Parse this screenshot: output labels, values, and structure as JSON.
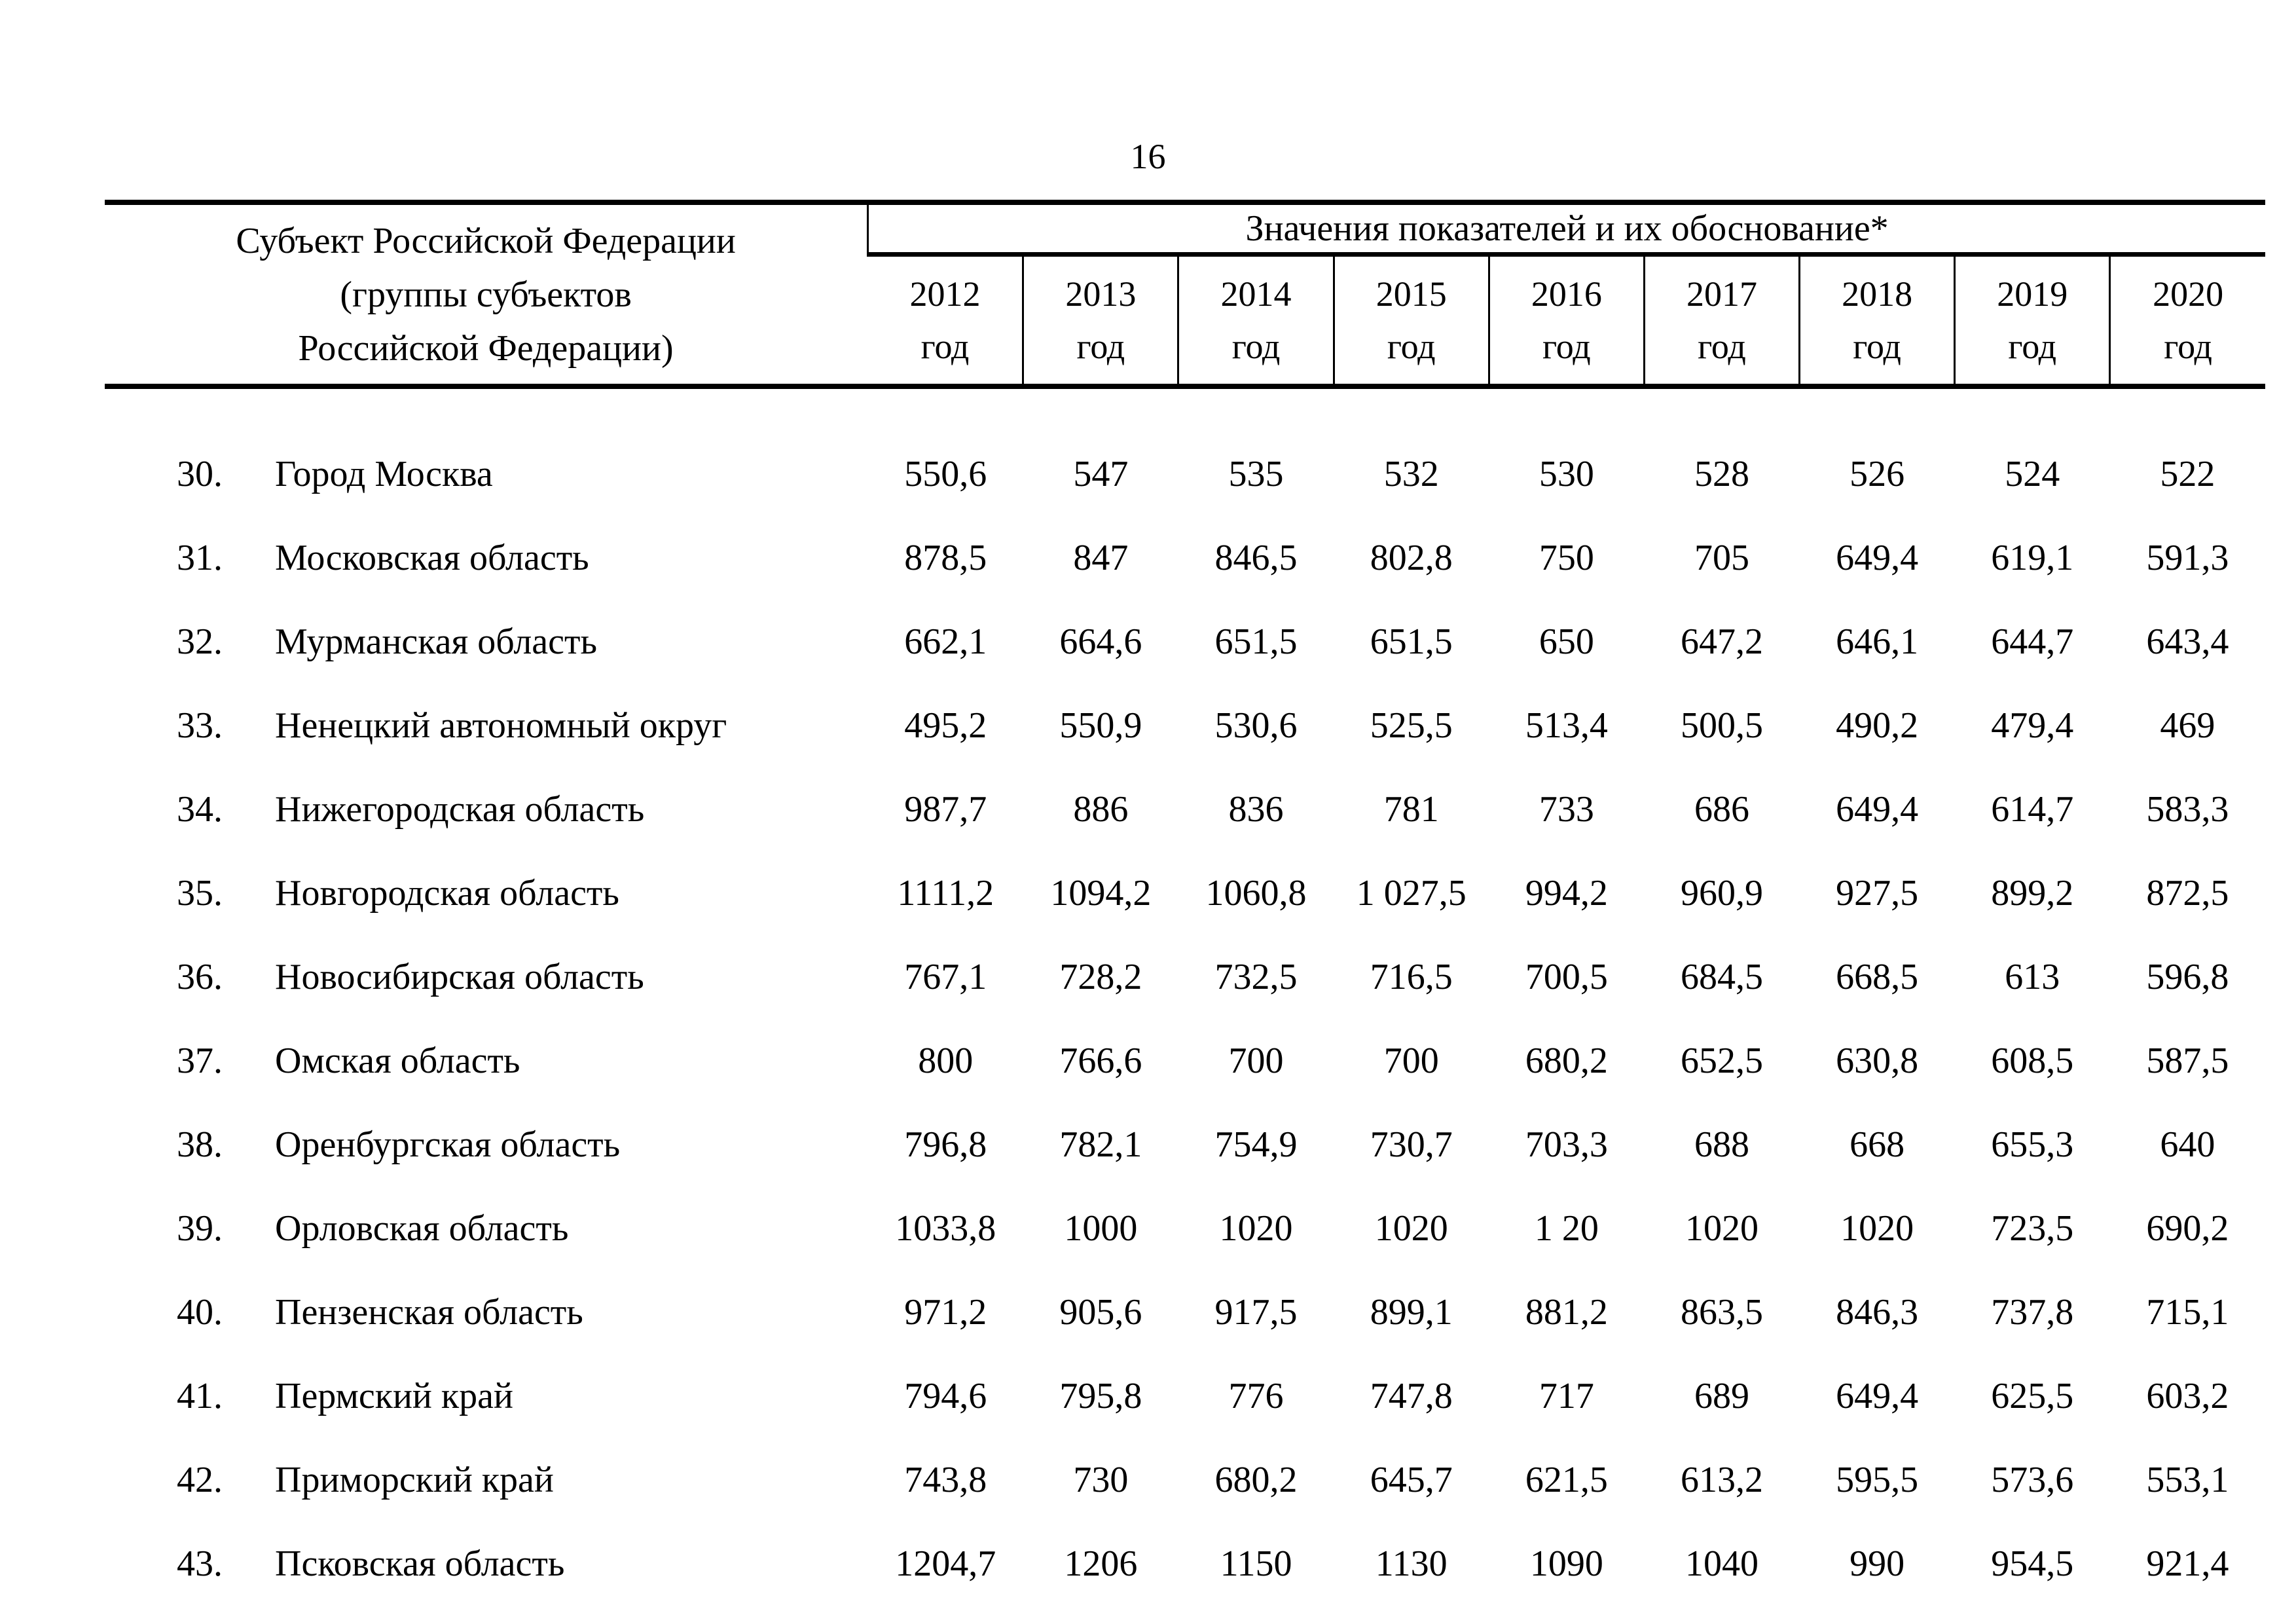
{
  "page": {
    "number": "16"
  },
  "table": {
    "subject_header_lines": [
      "Субъект Российской Федерации",
      "(группы субъектов",
      "Российской Федерации)"
    ],
    "values_header": "Значения показателей и их обоснование*",
    "year_unit": "год",
    "years": [
      "2012",
      "2013",
      "2014",
      "2015",
      "2016",
      "2017",
      "2018",
      "2019",
      "2020"
    ],
    "rows": [
      {
        "num": "30.",
        "name": "Город Москва",
        "values": [
          "550,6",
          "547",
          "535",
          "532",
          "530",
          "528",
          "526",
          "524",
          "522"
        ]
      },
      {
        "num": "31.",
        "name": "Московская область",
        "values": [
          "878,5",
          "847",
          "846,5",
          "802,8",
          "750",
          "705",
          "649,4",
          "619,1",
          "591,3"
        ]
      },
      {
        "num": "32.",
        "name": "Мурманская область",
        "values": [
          "662,1",
          "664,6",
          "651,5",
          "651,5",
          "650",
          "647,2",
          "646,1",
          "644,7",
          "643,4"
        ]
      },
      {
        "num": "33.",
        "name": "Ненецкий автономный округ",
        "values": [
          "495,2",
          "550,9",
          "530,6",
          "525,5",
          "513,4",
          "500,5",
          "490,2",
          "479,4",
          "469"
        ]
      },
      {
        "num": "34.",
        "name": "Нижегородская область",
        "values": [
          "987,7",
          "886",
          "836",
          "781",
          "733",
          "686",
          "649,4",
          "614,7",
          "583,3"
        ]
      },
      {
        "num": "35.",
        "name": "Новгородская область",
        "values": [
          "1111,2",
          "1094,2",
          "1060,8",
          "1 027,5",
          "994,2",
          "960,9",
          "927,5",
          "899,2",
          "872,5"
        ]
      },
      {
        "num": "36.",
        "name": "Новосибирская область",
        "values": [
          "767,1",
          "728,2",
          "732,5",
          "716,5",
          "700,5",
          "684,5",
          "668,5",
          "613",
          "596,8"
        ]
      },
      {
        "num": "37.",
        "name": "Омская область",
        "values": [
          "800",
          "766,6",
          "700",
          "700",
          "680,2",
          "652,5",
          "630,8",
          "608,5",
          "587,5"
        ]
      },
      {
        "num": "38.",
        "name": "Оренбургская область",
        "values": [
          "796,8",
          "782,1",
          "754,9",
          "730,7",
          "703,3",
          "688",
          "668",
          "655,3",
          "640"
        ]
      },
      {
        "num": "39.",
        "name": "Орловская область",
        "values": [
          "1033,8",
          "1000",
          "1020",
          "1020",
          "1 20",
          "1020",
          "1020",
          "723,5",
          "690,2"
        ]
      },
      {
        "num": "40.",
        "name": "Пензенская область",
        "values": [
          "971,2",
          "905,6",
          "917,5",
          "899,1",
          "881,2",
          "863,5",
          "846,3",
          "737,8",
          "715,1"
        ]
      },
      {
        "num": "41.",
        "name": "Пермский край",
        "values": [
          "794,6",
          "795,8",
          "776",
          "747,8",
          "717",
          "689",
          "649,4",
          "625,5",
          "603,2"
        ]
      },
      {
        "num": "42.",
        "name": "Приморский край",
        "values": [
          "743,8",
          "730",
          "680,2",
          "645,7",
          "621,5",
          "613,2",
          "595,5",
          "573,6",
          "553,1"
        ]
      },
      {
        "num": "43.",
        "name": "Псковская область",
        "values": [
          "1204,7",
          "1206",
          "1150",
          "1130",
          "1090",
          "1040",
          "990",
          "954,5",
          "921,4"
        ]
      }
    ]
  }
}
